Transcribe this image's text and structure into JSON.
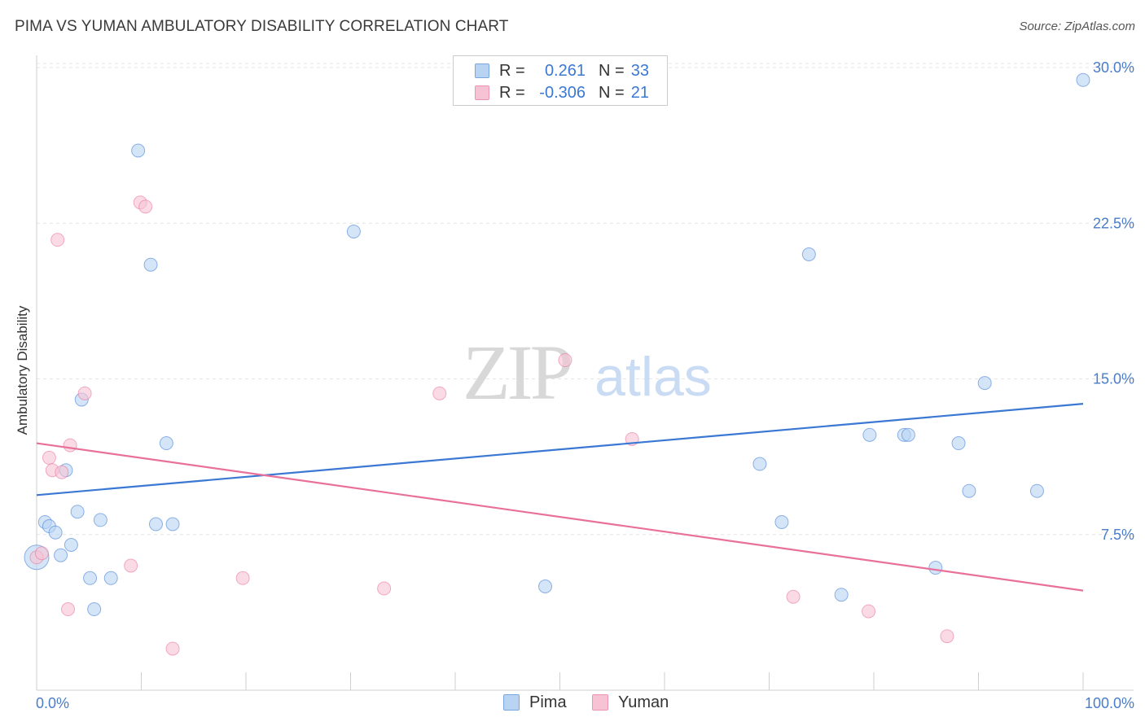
{
  "title": "PIMA VS YUMAN AMBULATORY DISABILITY CORRELATION CHART",
  "source": "Source: ZipAtlas.com",
  "watermark": {
    "zip": "ZIP",
    "atlas": "atlas"
  },
  "colors": {
    "pima": "#3a78d4",
    "pima_fill": "#b9d3f3",
    "yuman": "#e8709a",
    "yuman_fill": "#f7c3d4",
    "tick": "#4a7cc9",
    "grid": "#e2e2e2"
  },
  "legend_top": [
    {
      "series": "pima",
      "r_label": "R =",
      "r_value": "0.261",
      "n_label": "N =",
      "n_value": "33"
    },
    {
      "series": "yuman",
      "r_label": "R =",
      "r_value": "-0.306",
      "n_label": "N =",
      "n_value": "21"
    }
  ],
  "legend_bottom": [
    {
      "series": "pima",
      "label": "Pima"
    },
    {
      "series": "yuman",
      "label": "Yuman"
    }
  ],
  "chart_data": {
    "type": "scatter",
    "title": "PIMA VS YUMAN AMBULATORY DISABILITY CORRELATION CHART",
    "xlabel": "",
    "ylabel": "Ambulatory Disability",
    "xlim": [
      0,
      100
    ],
    "ylim": [
      0,
      30.7
    ],
    "x_tick_labels": [
      "0.0%",
      "100.0%"
    ],
    "y_ticks": [
      7.5,
      15.0,
      22.5,
      30.0
    ],
    "y_tick_labels": [
      "7.5%",
      "15.0%",
      "22.5%",
      "30.0%"
    ],
    "grid": true,
    "series": [
      {
        "name": "Pima",
        "color": "#3a78d4",
        "trend": {
          "x": [
            0,
            100
          ],
          "y": [
            9.4,
            13.8
          ]
        },
        "points": [
          [
            0.0,
            6.4
          ],
          [
            0.8,
            8.1
          ],
          [
            1.2,
            7.9
          ],
          [
            1.8,
            7.6
          ],
          [
            2.3,
            6.5
          ],
          [
            2.8,
            10.6
          ],
          [
            3.3,
            7.0
          ],
          [
            3.9,
            8.6
          ],
          [
            4.3,
            14.0
          ],
          [
            5.1,
            5.4
          ],
          [
            5.5,
            3.9
          ],
          [
            6.1,
            8.2
          ],
          [
            7.1,
            5.4
          ],
          [
            9.7,
            26.0
          ],
          [
            10.9,
            20.5
          ],
          [
            11.4,
            8.0
          ],
          [
            12.4,
            11.9
          ],
          [
            13.0,
            8.0
          ],
          [
            30.3,
            22.1
          ],
          [
            48.6,
            5.0
          ],
          [
            69.1,
            10.9
          ],
          [
            71.2,
            8.1
          ],
          [
            73.8,
            21.0
          ],
          [
            76.9,
            4.6
          ],
          [
            79.6,
            12.3
          ],
          [
            82.9,
            12.3
          ],
          [
            83.3,
            12.3
          ],
          [
            85.9,
            5.9
          ],
          [
            88.1,
            11.9
          ],
          [
            89.1,
            9.6
          ],
          [
            90.6,
            14.8
          ],
          [
            95.6,
            9.6
          ],
          [
            100.0,
            29.4
          ]
        ]
      },
      {
        "name": "Yuman",
        "color": "#e8709a",
        "trend": {
          "x": [
            0,
            100
          ],
          "y": [
            11.9,
            4.8
          ]
        },
        "points": [
          [
            0.0,
            6.4
          ],
          [
            0.5,
            6.6
          ],
          [
            1.2,
            11.2
          ],
          [
            1.5,
            10.6
          ],
          [
            2.0,
            21.7
          ],
          [
            2.4,
            10.5
          ],
          [
            3.0,
            3.9
          ],
          [
            3.2,
            11.8
          ],
          [
            4.6,
            14.3
          ],
          [
            9.0,
            6.0
          ],
          [
            9.9,
            23.5
          ],
          [
            10.4,
            23.3
          ],
          [
            13.0,
            2.0
          ],
          [
            19.7,
            5.4
          ],
          [
            33.2,
            4.9
          ],
          [
            38.5,
            14.3
          ],
          [
            50.5,
            15.9
          ],
          [
            56.9,
            12.1
          ],
          [
            72.3,
            4.5
          ],
          [
            79.5,
            3.8
          ],
          [
            87.0,
            2.6
          ]
        ]
      }
    ]
  }
}
